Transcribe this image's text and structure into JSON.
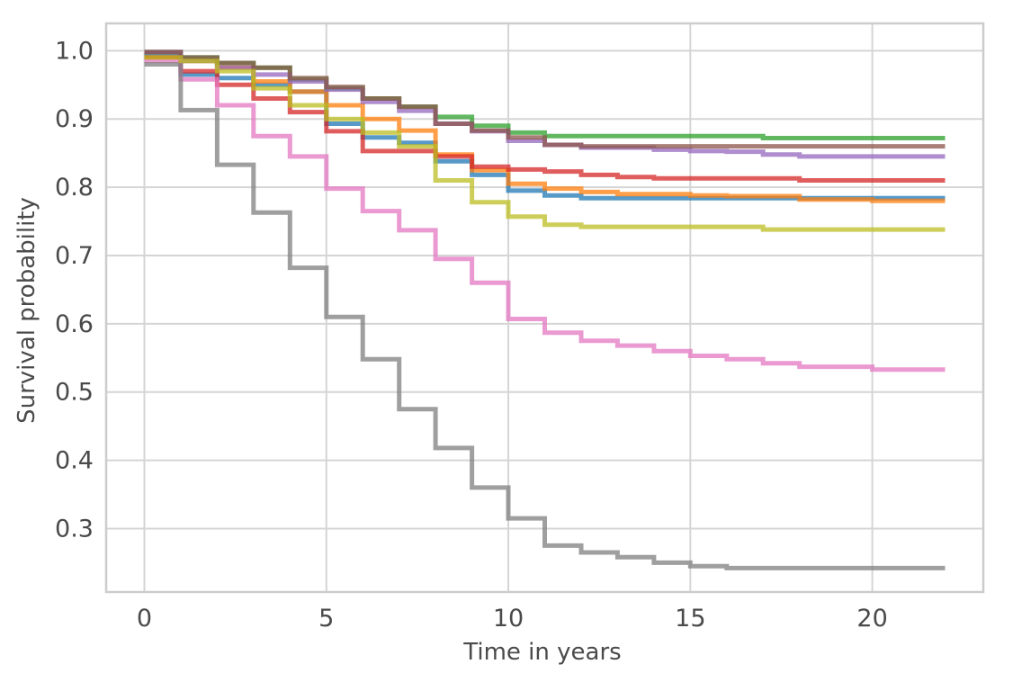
{
  "chart_data": {
    "type": "line",
    "step": true,
    "title": "",
    "xlabel": "Time in years",
    "ylabel": "Survival probability",
    "xlim": [
      -1.05,
      23.05
    ],
    "ylim": [
      0.207,
      1.04
    ],
    "xticks": [
      0,
      5,
      10,
      15,
      20
    ],
    "yticks": [
      0.3,
      0.4,
      0.5,
      0.6,
      0.7,
      0.8,
      0.9,
      1.0
    ],
    "xtick_labels": [
      "0",
      "5",
      "10",
      "15",
      "20"
    ],
    "ytick_labels": [
      "0.3",
      "0.4",
      "0.5",
      "0.6",
      "0.7",
      "0.8",
      "0.9",
      "1.0"
    ],
    "grid": true,
    "legend": false,
    "background": "#ffffff",
    "grid_color": "#d5d5d5",
    "frame_color": "#cccccc",
    "x": [
      0,
      1,
      2,
      3,
      4,
      5,
      6,
      7,
      8,
      9,
      10,
      11,
      12,
      13,
      14,
      15,
      16,
      17,
      18,
      19,
      20,
      21,
      22
    ],
    "series": [
      {
        "color": "#1f77b4",
        "values": [
          0.995,
          0.965,
          0.96,
          0.95,
          0.94,
          0.893,
          0.873,
          0.865,
          0.838,
          0.818,
          0.795,
          0.788,
          0.784,
          0.784,
          0.784,
          0.784,
          0.784,
          0.784,
          0.784,
          0.784,
          0.784,
          0.784,
          0.784
        ]
      },
      {
        "color": "#ff7f0e",
        "values": [
          0.99,
          0.985,
          0.975,
          0.955,
          0.94,
          0.92,
          0.9,
          0.883,
          0.848,
          0.825,
          0.805,
          0.798,
          0.793,
          0.79,
          0.79,
          0.788,
          0.787,
          0.787,
          0.782,
          0.782,
          0.78,
          0.78,
          0.78
        ]
      },
      {
        "color": "#2ca02c",
        "values": [
          0.998,
          0.99,
          0.982,
          0.975,
          0.958,
          0.945,
          0.93,
          0.918,
          0.903,
          0.89,
          0.88,
          0.875,
          0.875,
          0.875,
          0.875,
          0.875,
          0.875,
          0.872,
          0.872,
          0.872,
          0.872,
          0.872,
          0.872
        ]
      },
      {
        "color": "#d62728",
        "values": [
          0.99,
          0.97,
          0.95,
          0.93,
          0.91,
          0.882,
          0.853,
          0.853,
          0.845,
          0.83,
          0.826,
          0.823,
          0.818,
          0.815,
          0.813,
          0.813,
          0.813,
          0.813,
          0.81,
          0.81,
          0.81,
          0.81,
          0.81
        ]
      },
      {
        "color": "#9467bd",
        "values": [
          0.998,
          0.985,
          0.975,
          0.965,
          0.955,
          0.943,
          0.925,
          0.912,
          0.893,
          0.882,
          0.868,
          0.862,
          0.858,
          0.858,
          0.855,
          0.853,
          0.852,
          0.848,
          0.845,
          0.845,
          0.845,
          0.845,
          0.845
        ]
      },
      {
        "color": "#8c564b",
        "values": [
          0.998,
          0.99,
          0.982,
          0.975,
          0.96,
          0.947,
          0.93,
          0.918,
          0.893,
          0.883,
          0.873,
          0.862,
          0.86,
          0.86,
          0.86,
          0.86,
          0.86,
          0.86,
          0.86,
          0.86,
          0.86,
          0.86,
          0.86
        ]
      },
      {
        "color": "#e377c2",
        "values": [
          0.985,
          0.958,
          0.92,
          0.875,
          0.845,
          0.798,
          0.765,
          0.737,
          0.695,
          0.66,
          0.607,
          0.587,
          0.575,
          0.568,
          0.56,
          0.553,
          0.548,
          0.542,
          0.537,
          0.537,
          0.533,
          0.533,
          0.533
        ]
      },
      {
        "color": "#7f7f7f",
        "values": [
          0.98,
          0.913,
          0.833,
          0.763,
          0.682,
          0.61,
          0.548,
          0.475,
          0.418,
          0.36,
          0.315,
          0.275,
          0.265,
          0.258,
          0.25,
          0.245,
          0.242,
          0.242,
          0.242,
          0.242,
          0.242,
          0.242,
          0.242
        ]
      },
      {
        "color": "#bcbd22",
        "values": [
          0.99,
          0.985,
          0.97,
          0.945,
          0.92,
          0.9,
          0.88,
          0.86,
          0.81,
          0.778,
          0.757,
          0.745,
          0.742,
          0.742,
          0.742,
          0.742,
          0.742,
          0.738,
          0.738,
          0.738,
          0.738,
          0.738,
          0.738
        ]
      }
    ]
  }
}
